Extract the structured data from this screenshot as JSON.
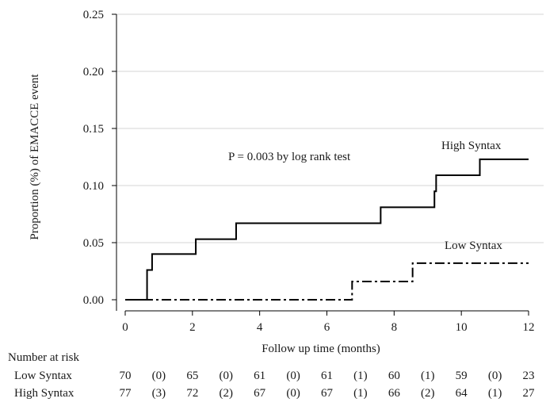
{
  "chart_data": {
    "type": "line",
    "step": true,
    "ylabel": "Proportion (%) of EMACCE event",
    "xlabel": "Follow up time (months)",
    "xlim": [
      0,
      12
    ],
    "ylim": [
      0,
      0.25
    ],
    "x_ticks": [
      "0",
      "2",
      "4",
      "6",
      "8",
      "10",
      "12"
    ],
    "x_tick_values": [
      0,
      2,
      4,
      6,
      8,
      10,
      12
    ],
    "y_ticks": [
      "0.00",
      "0.05",
      "0.10",
      "0.15",
      "0.20",
      "0.25"
    ],
    "y_tick_values": [
      0,
      0.05,
      0.1,
      0.15,
      0.2,
      0.25
    ],
    "grid": true,
    "annotation": "P = 0.003 by log rank test",
    "series": [
      {
        "name": "High Syntax",
        "style": "solid",
        "color": "#000000",
        "x": [
          0,
          0.65,
          0.8,
          2.1,
          3.3,
          7.6,
          9.2,
          9.25,
          10.55,
          12
        ],
        "y": [
          0,
          0.026,
          0.04,
          0.053,
          0.067,
          0.081,
          0.095,
          0.109,
          0.123,
          0.123
        ]
      },
      {
        "name": "Low Syntax",
        "style": "dash-dot",
        "color": "#000000",
        "x": [
          0,
          6.75,
          8.55,
          12
        ],
        "y": [
          0,
          0.016,
          0.032,
          0.032
        ]
      }
    ],
    "risk_table": {
      "title": "Number at risk",
      "rows": [
        {
          "label": "Low Syntax",
          "values": [
            "70",
            "(0)",
            "65",
            "(0)",
            "61",
            "(0)",
            "61",
            "(1)",
            "60",
            "(1)",
            "59",
            "(0)",
            "23"
          ]
        },
        {
          "label": "High Syntax",
          "values": [
            "77",
            "(3)",
            "72",
            "(2)",
            "67",
            "(0)",
            "67",
            "(1)",
            "66",
            "(2)",
            "64",
            "(1)",
            "27"
          ]
        }
      ]
    }
  }
}
